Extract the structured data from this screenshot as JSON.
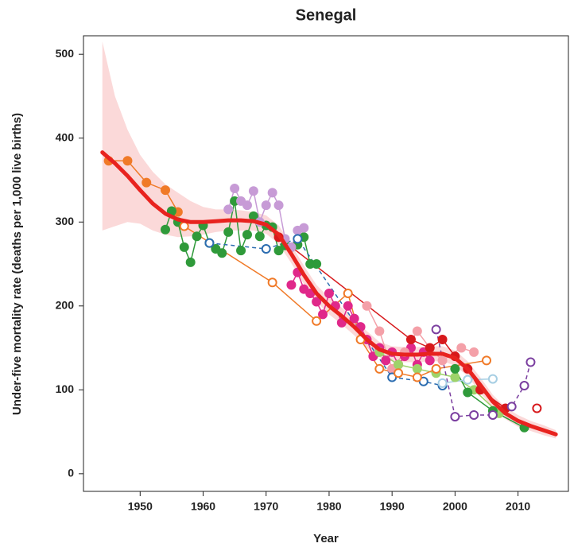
{
  "chart_data": {
    "type": "line",
    "title": "Senegal",
    "xlabel": "Year",
    "ylabel": "Under-five mortality rate (deaths per 1,000 live births)",
    "xlim": [
      1941,
      2018
    ],
    "ylim": [
      -21,
      522
    ],
    "xticks": [
      1950,
      1960,
      1970,
      1980,
      1990,
      2000,
      2010
    ],
    "yticks": [
      0,
      100,
      200,
      300,
      400,
      500
    ],
    "estimate": {
      "color": "#e8231f",
      "band_color": "#f9c9c9",
      "x": [
        1944,
        1946,
        1948,
        1950,
        1952,
        1954,
        1956,
        1958,
        1960,
        1962,
        1964,
        1966,
        1968,
        1970,
        1972,
        1974,
        1976,
        1978,
        1980,
        1982,
        1984,
        1986,
        1988,
        1990,
        1992,
        1994,
        1996,
        1998,
        2000,
        2002,
        2004,
        2006,
        2008,
        2010,
        2012,
        2014,
        2016
      ],
      "values": [
        383,
        370,
        355,
        338,
        322,
        310,
        303,
        300,
        300,
        301,
        302,
        302,
        301,
        297,
        285,
        262,
        237,
        215,
        200,
        188,
        175,
        160,
        148,
        143,
        142,
        142,
        143,
        143,
        138,
        125,
        106,
        86,
        72,
        63,
        57,
        52,
        47
      ],
      "upper": [
        515,
        450,
        410,
        380,
        360,
        345,
        335,
        325,
        318,
        315,
        315,
        314,
        312,
        308,
        296,
        273,
        248,
        225,
        210,
        198,
        185,
        170,
        157,
        152,
        151,
        151,
        152,
        152,
        147,
        134,
        115,
        94,
        79,
        70,
        63,
        58,
        52
      ],
      "lower": [
        290,
        295,
        300,
        298,
        290,
        285,
        282,
        283,
        285,
        288,
        290,
        290,
        290,
        286,
        274,
        251,
        226,
        205,
        190,
        178,
        165,
        150,
        139,
        134,
        133,
        133,
        134,
        134,
        129,
        116,
        97,
        78,
        65,
        56,
        51,
        46,
        42
      ]
    },
    "series": [
      {
        "color": "#f07a28",
        "hollow": false,
        "dashed": false,
        "x": [
          1945,
          1948,
          1951,
          1954,
          1956
        ],
        "values": [
          373,
          373,
          347,
          338,
          312
        ]
      },
      {
        "color": "#2f9a3a",
        "hollow": false,
        "dashed": false,
        "x": [
          1954,
          1955,
          1956,
          1957,
          1958,
          1959,
          1960,
          1961,
          1962,
          1963,
          1964,
          1965,
          1966,
          1967,
          1968,
          1969,
          1970,
          1971,
          1972,
          1973,
          1974,
          1975,
          1976,
          1977,
          1978
        ],
        "values": [
          291,
          313,
          300,
          270,
          252,
          283,
          296,
          275,
          268,
          263,
          288,
          325,
          266,
          285,
          307,
          283,
          296,
          294,
          266,
          272,
          270,
          273,
          282,
          250,
          250
        ]
      },
      {
        "color": "#c79bd6",
        "hollow": false,
        "dashed": false,
        "x": [
          1964,
          1965,
          1966,
          1967,
          1968,
          1969,
          1970,
          1971,
          1972,
          1973,
          1974,
          1975,
          1976
        ],
        "values": [
          315,
          340,
          325,
          320,
          337,
          300,
          320,
          335,
          320,
          280,
          270,
          290,
          293
        ]
      },
      {
        "color": "#e0288a",
        "hollow": false,
        "dashed": false,
        "x": [
          1974,
          1975,
          1976,
          1977,
          1978,
          1979,
          1980,
          1981,
          1982,
          1983,
          1984,
          1985,
          1986,
          1987,
          1988,
          1989,
          1990,
          1991,
          1992,
          1993,
          1994,
          1995,
          1996
        ],
        "values": [
          225,
          240,
          220,
          215,
          205,
          190,
          215,
          200,
          180,
          200,
          185,
          175,
          160,
          140,
          150,
          135,
          145,
          130,
          140,
          150,
          130,
          145,
          135
        ]
      },
      {
        "color": "#f4a0a8",
        "hollow": false,
        "dashed": false,
        "x": [
          1986,
          1988,
          1990,
          1992,
          1994,
          1996,
          1998,
          2001,
          2003
        ],
        "values": [
          200,
          170,
          125,
          145,
          170,
          150,
          135,
          150,
          145
        ]
      },
      {
        "color": "#9ed36a",
        "hollow": false,
        "dashed": false,
        "x": [
          1988,
          1991,
          1994,
          1997,
          2000,
          2003,
          2007
        ],
        "values": [
          145,
          130,
          125,
          120,
          115,
          100,
          72
        ]
      },
      {
        "color": "#2f9a3a",
        "hollow": false,
        "dashed": false,
        "x": [
          2000,
          2002,
          2006,
          2011
        ],
        "values": [
          125,
          97,
          75,
          55
        ]
      },
      {
        "color": "#d7191c",
        "hollow": false,
        "dashed": false,
        "x": [
          1972,
          1993,
          1996,
          1998,
          2000,
          2002,
          2004,
          2008
        ],
        "values": [
          282,
          160,
          150,
          160,
          140,
          125,
          100,
          78
        ]
      },
      {
        "color": "#2b6cb0",
        "hollow": true,
        "dashed": true,
        "x": [
          1961,
          1970,
          1975,
          1990,
          1995,
          1998
        ],
        "values": [
          275,
          268,
          280,
          115,
          110,
          105
        ]
      },
      {
        "color": "#f07a28",
        "hollow": true,
        "dashed": false,
        "x": [
          1957,
          1971,
          1978,
          1983,
          1985,
          1988,
          1991,
          1994,
          1997,
          2005
        ],
        "values": [
          295,
          228,
          182,
          215,
          160,
          125,
          120,
          115,
          125,
          135
        ]
      },
      {
        "color": "#7b3fa0",
        "hollow": true,
        "dashed": true,
        "x": [
          1997,
          2000,
          2003,
          2006,
          2009,
          2011,
          2012
        ],
        "values": [
          172,
          68,
          70,
          70,
          80,
          105,
          133
        ]
      },
      {
        "color": "#a6cee3",
        "hollow": true,
        "dashed": false,
        "x": [
          1998,
          2002,
          2006
        ],
        "values": [
          108,
          112,
          113
        ]
      },
      {
        "color": "#d7191c",
        "hollow": true,
        "dashed": false,
        "x": [
          2013
        ],
        "values": [
          78
        ]
      }
    ]
  }
}
